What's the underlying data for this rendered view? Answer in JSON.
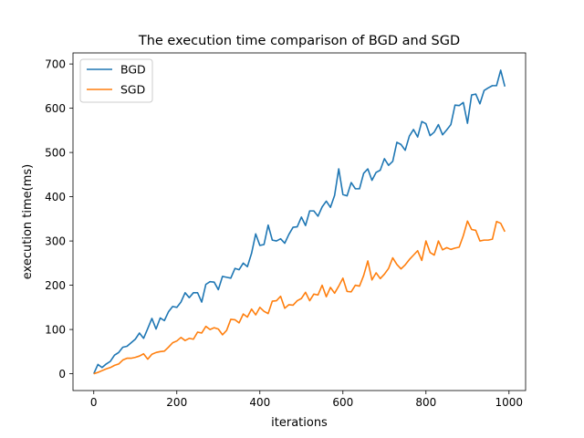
{
  "chart_data": {
    "type": "line",
    "title": "The execution time comparison of BGD and SGD",
    "xlabel": "iterations",
    "ylabel": "execution time(ms)",
    "xlim": [
      -50,
      1040
    ],
    "ylim": [
      -38,
      725
    ],
    "xticks": [
      0,
      200,
      400,
      600,
      800,
      1000
    ],
    "yticks": [
      0,
      100,
      200,
      300,
      400,
      500,
      600,
      700
    ],
    "grid": false,
    "legend_position": "top-left",
    "x": [
      0,
      10,
      20,
      30,
      40,
      50,
      60,
      70,
      80,
      90,
      100,
      110,
      120,
      130,
      140,
      150,
      160,
      170,
      180,
      190,
      200,
      210,
      220,
      230,
      240,
      250,
      260,
      270,
      280,
      290,
      300,
      310,
      320,
      330,
      340,
      350,
      360,
      370,
      380,
      390,
      400,
      410,
      420,
      430,
      440,
      450,
      460,
      470,
      480,
      490,
      500,
      510,
      520,
      530,
      540,
      550,
      560,
      570,
      580,
      590,
      600,
      610,
      620,
      630,
      640,
      650,
      660,
      670,
      680,
      690,
      700,
      710,
      720,
      730,
      740,
      750,
      760,
      770,
      780,
      790,
      800,
      810,
      820,
      830,
      840,
      850,
      860,
      870,
      880,
      890,
      900,
      910,
      920,
      930,
      940,
      950,
      960,
      970,
      980,
      990
    ],
    "series": [
      {
        "name": "BGD",
        "color": "#1f77b4",
        "values": [
          0,
          21,
          14,
          22,
          28,
          42,
          48,
          60,
          62,
          70,
          78,
          92,
          80,
          102,
          125,
          101,
          126,
          120,
          140,
          152,
          150,
          162,
          183,
          172,
          183,
          183,
          162,
          202,
          208,
          207,
          190,
          220,
          218,
          216,
          238,
          235,
          250,
          242,
          272,
          316,
          290,
          292,
          336,
          302,
          300,
          305,
          295,
          315,
          331,
          332,
          354,
          335,
          368,
          368,
          356,
          377,
          390,
          376,
          403,
          463,
          405,
          402,
          432,
          418,
          418,
          453,
          463,
          437,
          455,
          460,
          486,
          471,
          480,
          523,
          518,
          505,
          537,
          552,
          535,
          570,
          565,
          538,
          546,
          563,
          540,
          551,
          563,
          607,
          606,
          613,
          566,
          630,
          632,
          610,
          640,
          646,
          651,
          651,
          686,
          649
        ]
      },
      {
        "name": "SGD",
        "color": "#ff7f0e",
        "values": [
          0,
          3,
          7,
          11,
          14,
          19,
          22,
          31,
          35,
          35,
          37,
          40,
          45,
          33,
          44,
          48,
          50,
          51,
          60,
          70,
          74,
          82,
          75,
          80,
          78,
          94,
          92,
          107,
          100,
          104,
          101,
          88,
          98,
          123,
          122,
          115,
          135,
          128,
          146,
          133,
          150,
          141,
          136,
          164,
          165,
          175,
          148,
          156,
          155,
          165,
          170,
          184,
          165,
          180,
          178,
          200,
          174,
          195,
          182,
          198,
          216,
          186,
          185,
          200,
          198,
          222,
          255,
          212,
          228,
          215,
          225,
          238,
          262,
          247,
          237,
          246,
          258,
          268,
          278,
          256,
          300,
          274,
          268,
          300,
          280,
          285,
          281,
          284,
          286,
          312,
          345,
          326,
          324,
          300,
          302,
          302,
          304,
          344,
          340,
          321
        ]
      }
    ]
  }
}
